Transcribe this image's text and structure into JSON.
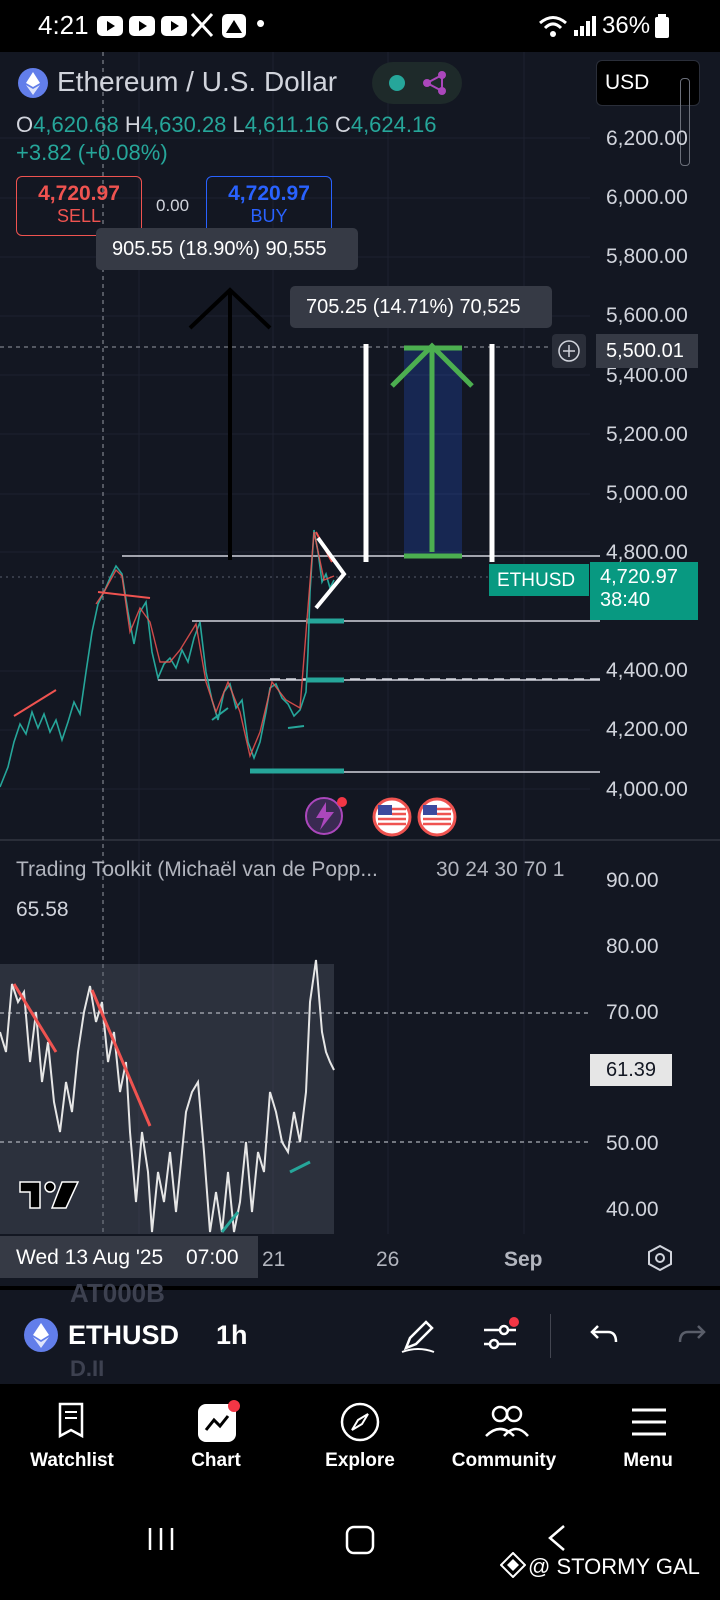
{
  "status_bar": {
    "time": "4:21",
    "battery": "36%",
    "dot": "•"
  },
  "symbol": {
    "name": "Ethereum / U.S. Dollar",
    "currency": "USD",
    "ohlc": {
      "o_label": "O",
      "o": "4,620.68",
      "h_label": "H",
      "h": "4,630.28",
      "l_label": "L",
      "l": "4,611.16",
      "c_label": "C",
      "c": "4,624.16"
    },
    "change": "+3.82 (+0.08%)"
  },
  "trade": {
    "sell_price": "4,720.97",
    "sell_label": "SELL",
    "spread": "0.00",
    "buy_price": "4,720.97",
    "buy_label": "BUY"
  },
  "measurements": {
    "first": "905.55 (18.90%) 90,555",
    "second": "705.25 (14.71%) 70,525"
  },
  "price_axis": {
    "labels": [
      "6,200.00",
      "6,000.00",
      "5,800.00",
      "5,600.00",
      "5,400.00",
      "5,200.00",
      "5,000.00",
      "4,800.00",
      "4,400.00",
      "4,200.00",
      "4,000.00"
    ],
    "crosshair_price": "5,500.01",
    "current_ticker": "ETHUSD",
    "current_price": "4,720.97",
    "countdown": "38:40"
  },
  "indicator": {
    "title": "Trading Toolkit (Michaël van de Popp...",
    "params": "30 24 30 70 1",
    "value": "65.58",
    "axis_labels": [
      "90.00",
      "80.00",
      "70.00",
      "50.00",
      "40.00"
    ],
    "current_value": "61.39"
  },
  "time_axis": {
    "crosshair_date": "Wed 13 Aug '25",
    "crosshair_time": "07:00",
    "ticks": [
      "21",
      "26",
      "Sep"
    ]
  },
  "toolbar": {
    "symbol": "ETHUSD",
    "interval": "1h",
    "ghost_text_1": "AT000B",
    "ghost_text_2": "D.II"
  },
  "bottom_nav": {
    "items": [
      "Watchlist",
      "Chart",
      "Explore",
      "Community",
      "Menu"
    ]
  },
  "watermark": "@ STORMY GAL",
  "colors": {
    "bg": "#131722",
    "green": "#26a69a",
    "red": "#ef5350",
    "blue": "#2962ff",
    "accent_green": "#4caf50"
  }
}
